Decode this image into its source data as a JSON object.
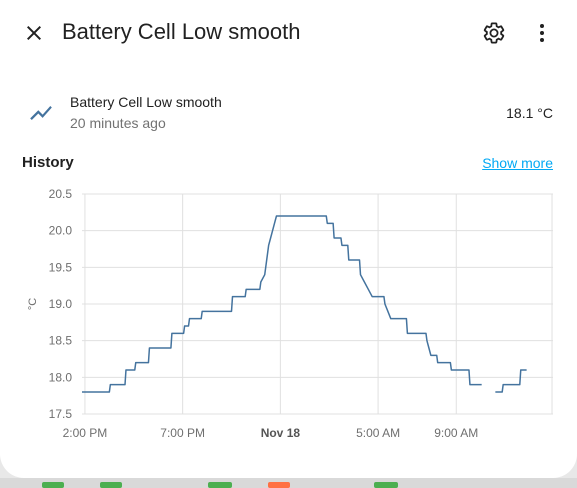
{
  "header": {
    "title": "Battery Cell Low smooth",
    "close_icon": "close-icon",
    "settings_icon": "gear-icon",
    "menu_icon": "dots-vertical-icon"
  },
  "entity": {
    "name": "Battery Cell Low smooth",
    "last_changed": "20 minutes ago",
    "state": "18.1 °C",
    "icon": "chart-line-icon"
  },
  "history": {
    "title": "History",
    "show_more": "Show more"
  },
  "colors": {
    "line": "#44739e",
    "link": "#03a9f4",
    "grid": "#e0e0e0"
  },
  "chart_data": {
    "type": "line",
    "ylabel": "°C",
    "ylim": [
      17.5,
      20.5
    ],
    "y_ticks": [
      17.5,
      18.0,
      18.5,
      19.0,
      19.5,
      20.0,
      20.5
    ],
    "x_range_hours": [
      13.85,
      37.95
    ],
    "x_ticks": [
      {
        "label": "2:00 PM",
        "hour": 14,
        "bold": false
      },
      {
        "label": "7:00 PM",
        "hour": 19,
        "bold": false
      },
      {
        "label": "Nov 18",
        "hour": 24,
        "bold": true
      },
      {
        "label": "5:00 AM",
        "hour": 29,
        "bold": false
      },
      {
        "label": "9:00 AM",
        "hour": 33,
        "bold": false
      }
    ],
    "x_grid_hours": [
      14,
      19,
      24,
      29,
      33,
      37.9
    ],
    "series": [
      {
        "segments": [
          [
            [
              13.85,
              17.8
            ],
            [
              15.25,
              17.8
            ],
            [
              15.3,
              17.9
            ],
            [
              16.05,
              17.9
            ],
            [
              16.1,
              18.1
            ],
            [
              16.55,
              18.1
            ],
            [
              16.6,
              18.2
            ],
            [
              17.25,
              18.2
            ],
            [
              17.3,
              18.4
            ],
            [
              18.4,
              18.4
            ],
            [
              18.45,
              18.6
            ],
            [
              19.05,
              18.6
            ],
            [
              19.1,
              18.7
            ],
            [
              19.3,
              18.7
            ],
            [
              19.35,
              18.8
            ],
            [
              19.95,
              18.8
            ],
            [
              20.0,
              18.9
            ],
            [
              21.5,
              18.9
            ],
            [
              21.55,
              19.1
            ],
            [
              22.2,
              19.1
            ],
            [
              22.25,
              19.2
            ],
            [
              22.95,
              19.2
            ],
            [
              23.0,
              19.3
            ],
            [
              23.2,
              19.4
            ],
            [
              23.3,
              19.6
            ],
            [
              23.4,
              19.8
            ],
            [
              23.5,
              19.9
            ],
            [
              23.6,
              20.0
            ],
            [
              23.7,
              20.1
            ],
            [
              23.8,
              20.2
            ],
            [
              26.35,
              20.2
            ],
            [
              26.4,
              20.1
            ],
            [
              26.7,
              20.1
            ],
            [
              26.75,
              19.9
            ],
            [
              27.1,
              19.9
            ],
            [
              27.15,
              19.8
            ],
            [
              27.45,
              19.8
            ],
            [
              27.5,
              19.6
            ],
            [
              28.05,
              19.6
            ],
            [
              28.1,
              19.4
            ],
            [
              28.3,
              19.3
            ],
            [
              28.5,
              19.2
            ],
            [
              28.7,
              19.1
            ],
            [
              29.3,
              19.1
            ],
            [
              29.35,
              19.0
            ],
            [
              29.5,
              18.9
            ],
            [
              29.65,
              18.8
            ],
            [
              30.45,
              18.8
            ],
            [
              30.5,
              18.6
            ],
            [
              31.45,
              18.6
            ],
            [
              31.5,
              18.5
            ],
            [
              31.6,
              18.4
            ],
            [
              31.7,
              18.3
            ],
            [
              32.0,
              18.3
            ],
            [
              32.05,
              18.2
            ],
            [
              32.7,
              18.2
            ],
            [
              32.75,
              18.1
            ],
            [
              33.65,
              18.1
            ],
            [
              33.7,
              17.9
            ],
            [
              34.3,
              17.9
            ]
          ],
          [
            [
              35.0,
              17.8
            ],
            [
              35.35,
              17.8
            ],
            [
              35.4,
              17.9
            ],
            [
              36.25,
              17.9
            ],
            [
              36.3,
              18.1
            ],
            [
              36.6,
              18.1
            ]
          ]
        ]
      }
    ]
  }
}
